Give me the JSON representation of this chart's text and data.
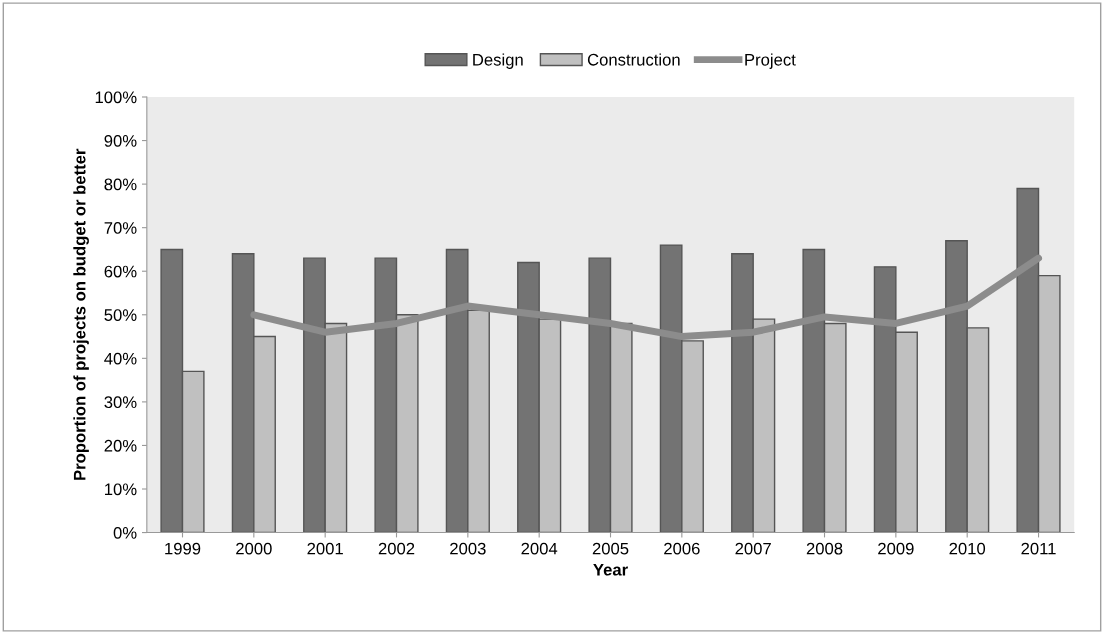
{
  "chart_data": {
    "type": "bar",
    "xlabel": "Year",
    "ylabel": "Proportion of projects on budget or better",
    "categories": [
      "1999",
      "2000",
      "2001",
      "2002",
      "2003",
      "2004",
      "2005",
      "2006",
      "2007",
      "2008",
      "2009",
      "2010",
      "2011"
    ],
    "series": [
      {
        "name": "Design",
        "color": "#737373",
        "values": [
          65,
          64,
          63,
          63,
          65,
          62,
          63,
          66,
          64,
          65,
          61,
          67,
          79
        ]
      },
      {
        "name": "Construction",
        "color": "#c0c0c0",
        "values": [
          37,
          45,
          48,
          50,
          51,
          49,
          48,
          44,
          49,
          48,
          46,
          47,
          59
        ]
      },
      {
        "name": "Project",
        "type": "line",
        "color": "#8c8c8c",
        "values": [
          null,
          50,
          46,
          48,
          52,
          50,
          48,
          45,
          46,
          49.5,
          48,
          52,
          63
        ]
      }
    ],
    "ylim": [
      0,
      100
    ],
    "yticks": [
      {
        "value": 0,
        "label": "0%"
      },
      {
        "value": 10,
        "label": "10%"
      },
      {
        "value": 20,
        "label": "20%"
      },
      {
        "value": 30,
        "label": "30%"
      },
      {
        "value": 40,
        "label": "40%"
      },
      {
        "value": 50,
        "label": "50%"
      },
      {
        "value": 60,
        "label": "60%"
      },
      {
        "value": 70,
        "label": "70%"
      },
      {
        "value": 80,
        "label": "80%"
      },
      {
        "value": 90,
        "label": "90%"
      },
      {
        "value": 100,
        "label": "100%"
      }
    ],
    "grid": false,
    "legend": "top"
  }
}
